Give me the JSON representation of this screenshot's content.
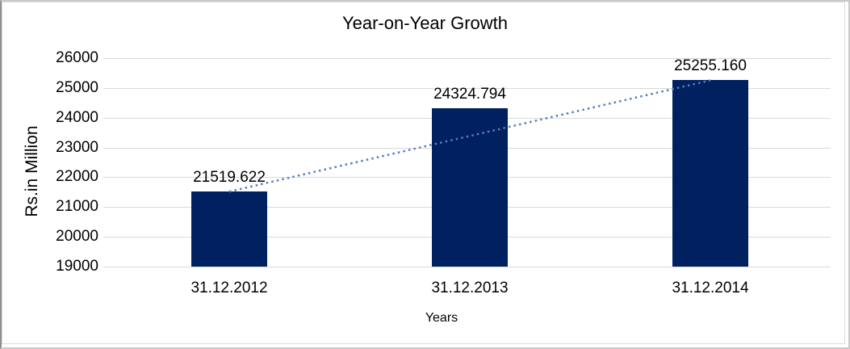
{
  "chart_data": {
    "type": "bar",
    "title": "Year-on-Year Growth",
    "xlabel": "Years",
    "ylabel": "Rs.in Million",
    "categories": [
      "31.12.2012",
      "31.12.2013",
      "31.12.2014"
    ],
    "values": [
      21519.622,
      24324.794,
      25255.16
    ],
    "data_labels": [
      "21519.622",
      "24324.794",
      "25255.160"
    ],
    "ylim": [
      19000,
      26000
    ],
    "ytick_step": 1000,
    "ytick_labels": [
      "19000",
      "20000",
      "21000",
      "22000",
      "23000",
      "24000",
      "25000",
      "26000"
    ],
    "grid": true,
    "legend": "none",
    "bar_color": "#002060",
    "gridline_color": "#d9d9d9",
    "text_color": "#000000",
    "frame_color": "#c9c9c9",
    "trendline": {
      "type": "linear",
      "style": "dotted",
      "color": "#4f81bd",
      "from_value": 21519.622,
      "to_value": 25255.16
    }
  }
}
